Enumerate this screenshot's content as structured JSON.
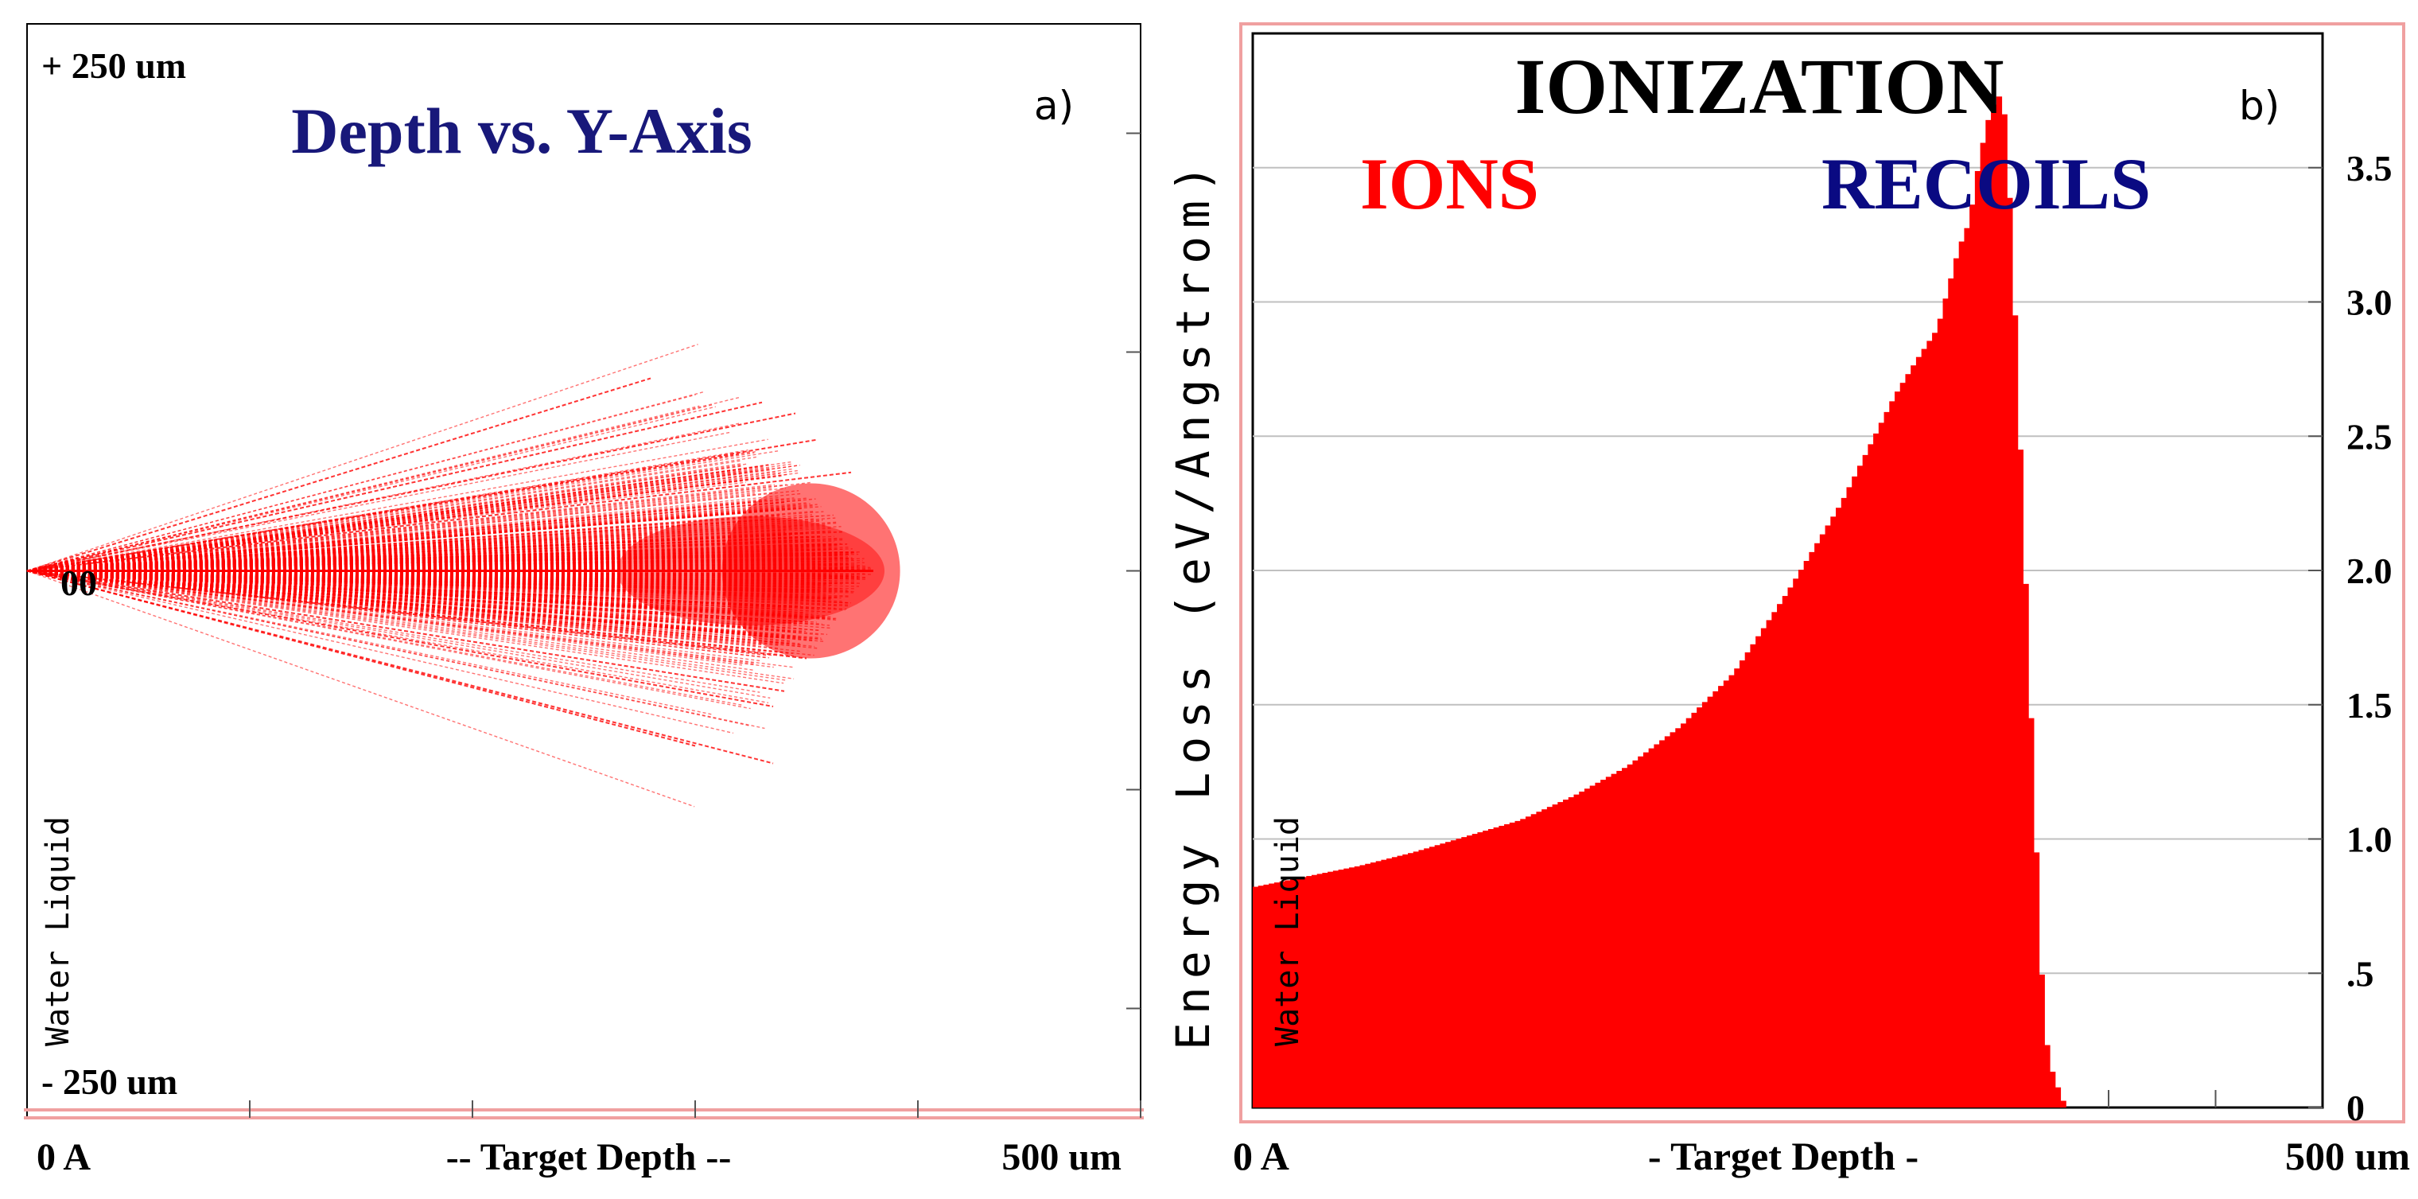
{
  "colors": {
    "ion": "#ff0000",
    "recoil": "#0a0a82",
    "frame": "#f0a0a0",
    "grid": "#c0c0c0",
    "axis": "#000000",
    "panel_title_a": "#18187a"
  },
  "chart_data": [
    {
      "type": "scatter",
      "panel_label": "a)",
      "title": "Depth vs. Y-Axis",
      "y_top_label": "+ 250 um",
      "y_bottom_label": "- 250 um",
      "y_zero_label": "00",
      "target_label": "Water Liquid",
      "x_left_label": "0 A",
      "x_center_label": "-- Target Depth --",
      "x_right_label": "500 um",
      "xlim": [
        0,
        500
      ],
      "ylim": [
        -250,
        250
      ],
      "x_unit": "um",
      "y_unit": "um",
      "x_ticks": [
        100,
        200,
        300,
        400,
        500
      ],
      "y_ticks": [
        -200,
        -100,
        0,
        100,
        200
      ],
      "range_end": 380,
      "straggle_max": 95,
      "ion_tracks_sample": [
        {
          "end_x": 280,
          "end_y": 88
        },
        {
          "end_x": 330,
          "end_y": 77
        },
        {
          "end_x": 345,
          "end_y": 72
        },
        {
          "end_x": 355,
          "end_y": 60
        },
        {
          "end_x": 370,
          "end_y": 45
        },
        {
          "end_x": 350,
          "end_y": -40
        },
        {
          "end_x": 335,
          "end_y": -62
        },
        {
          "end_x": 335,
          "end_y": -88
        },
        {
          "end_x": 300,
          "end_y": -80
        },
        {
          "end_x": 340,
          "end_y": -55
        }
      ]
    },
    {
      "type": "area",
      "panel_label": "b)",
      "title": "IONIZATION",
      "legend": [
        {
          "name": "IONS",
          "color": "#ff0000"
        },
        {
          "name": "RECOILS",
          "color": "#0a0a82"
        }
      ],
      "ylabel": "Energy Loss (eV/Angstrom)",
      "target_label": "Water Liquid",
      "x_left_label": "0 A",
      "x_center_label": "- Target Depth -",
      "x_right_label": "500 um",
      "xlim": [
        0,
        500
      ],
      "ylim": [
        0,
        4.0
      ],
      "y_tick_labels": [
        "0",
        ".5",
        "1.0",
        "1.5",
        "2.0",
        "2.5",
        "3.0",
        "3.5"
      ],
      "y_ticks": [
        0,
        0.5,
        1.0,
        1.5,
        2.0,
        2.5,
        3.0,
        3.5
      ],
      "x_ticks": [
        50,
        100,
        150,
        200,
        250,
        300,
        350,
        400,
        450
      ],
      "series": [
        {
          "name": "IONS",
          "x": [
            0,
            25,
            50,
            75,
            100,
            125,
            150,
            175,
            200,
            225,
            250,
            275,
            300,
            310,
            320,
            330,
            335,
            340,
            345,
            350,
            352,
            355,
            358,
            362,
            365,
            368,
            370,
            372,
            375,
            378,
            380
          ],
          "y": [
            0.82,
            0.86,
            0.9,
            0.95,
            1.01,
            1.07,
            1.16,
            1.27,
            1.42,
            1.62,
            1.92,
            2.25,
            2.65,
            2.78,
            2.9,
            3.2,
            3.3,
            3.55,
            3.72,
            3.78,
            3.65,
            3.2,
            2.6,
            1.8,
            1.2,
            0.6,
            0.32,
            0.18,
            0.1,
            0.04,
            0.0
          ]
        }
      ]
    }
  ]
}
